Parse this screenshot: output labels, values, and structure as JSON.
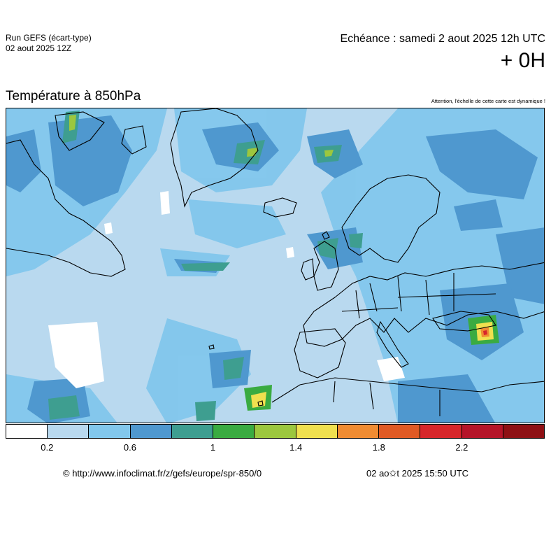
{
  "header": {
    "run_label": "Run GEFS (écart-type)",
    "run_date": "02 aout 2025 12Z",
    "echeance": "Echéance : samedi 2 aout 2025 12h UTC",
    "offset": "+ 0H"
  },
  "map": {
    "title": "Température à 850hPa",
    "warning": "Attention, l'échelle de cette carte est dynamique !",
    "region": "Europe / North Atlantic",
    "land_outline_color": "#000000"
  },
  "legend": {
    "colors": [
      "#ffffff",
      "#b9d9ef",
      "#82c7ec",
      "#4f98cf",
      "#3e9e90",
      "#3aab41",
      "#9cc73e",
      "#f0e04f",
      "#f08c32",
      "#e05a24",
      "#d7262a",
      "#b51428",
      "#8e1014"
    ],
    "ticks": [
      {
        "label": "0.2",
        "value": 0.2
      },
      {
        "label": "0.6",
        "value": 0.6
      },
      {
        "label": "1",
        "value": 1.0
      },
      {
        "label": "1.4",
        "value": 1.4
      },
      {
        "label": "1.8",
        "value": 1.8
      },
      {
        "label": "2.2",
        "value": 2.2
      }
    ]
  },
  "footer": {
    "url": "© http://www.infoclimat.fr/z/gefs/europe/spr-850/0",
    "timestamp": "02 ao✩t 2025 15:50 UTC"
  }
}
